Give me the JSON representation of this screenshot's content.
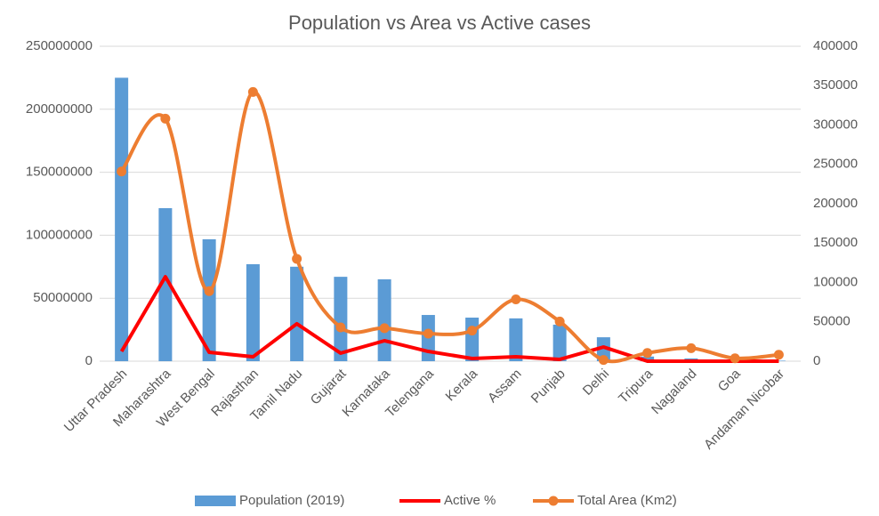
{
  "chart_data": {
    "type": "combo",
    "title": "Population vs Area vs Active cases",
    "categories": [
      "Uttar Pradesh",
      "Maharashtra",
      "West Bengal",
      "Rajasthan",
      "Tamil Nadu",
      "Gujarat",
      "Karnataka",
      "Telengana",
      "Kerala",
      "Assam",
      "Punjab",
      "Delhi",
      "Tripura",
      "Nagaland",
      "Goa",
      "Andaman Nicobar"
    ],
    "series": [
      {
        "name": "Population (2019)",
        "type": "bar",
        "color": "#5b9bd5",
        "values": [
          225000000,
          121500000,
          96800000,
          77000000,
          75000000,
          67000000,
          65000000,
          36700000,
          34600000,
          34000000,
          29000000,
          19000000,
          3700000,
          2200000,
          1500000,
          400000
        ]
      },
      {
        "name": "Active %",
        "type": "line",
        "axis": "y2",
        "color": "#ff0000",
        "values": [
          12400,
          107300,
          11300,
          5600,
          47500,
          10200,
          26000,
          12400,
          3400,
          5600,
          2300,
          18000,
          0,
          0,
          0,
          0
        ]
      },
      {
        "name": "Total Area (Km2)",
        "type": "smooth-line-markers",
        "axis": "y2",
        "color": "#ed7d31",
        "values": [
          241000,
          308000,
          89000,
          342000,
          130000,
          42900,
          42000,
          35000,
          38800,
          78500,
          50400,
          1500,
          10500,
          16500,
          3700,
          8200
        ]
      }
    ],
    "ylim": [
      0,
      250000000
    ],
    "yticks": [
      0,
      50000000,
      100000000,
      150000000,
      200000000,
      250000000
    ],
    "y2lim": [
      0,
      400000
    ],
    "y2ticks": [
      0,
      50000,
      100000,
      150000,
      200000,
      250000,
      300000,
      350000,
      400000
    ],
    "grid": true,
    "legend": "bottom"
  }
}
